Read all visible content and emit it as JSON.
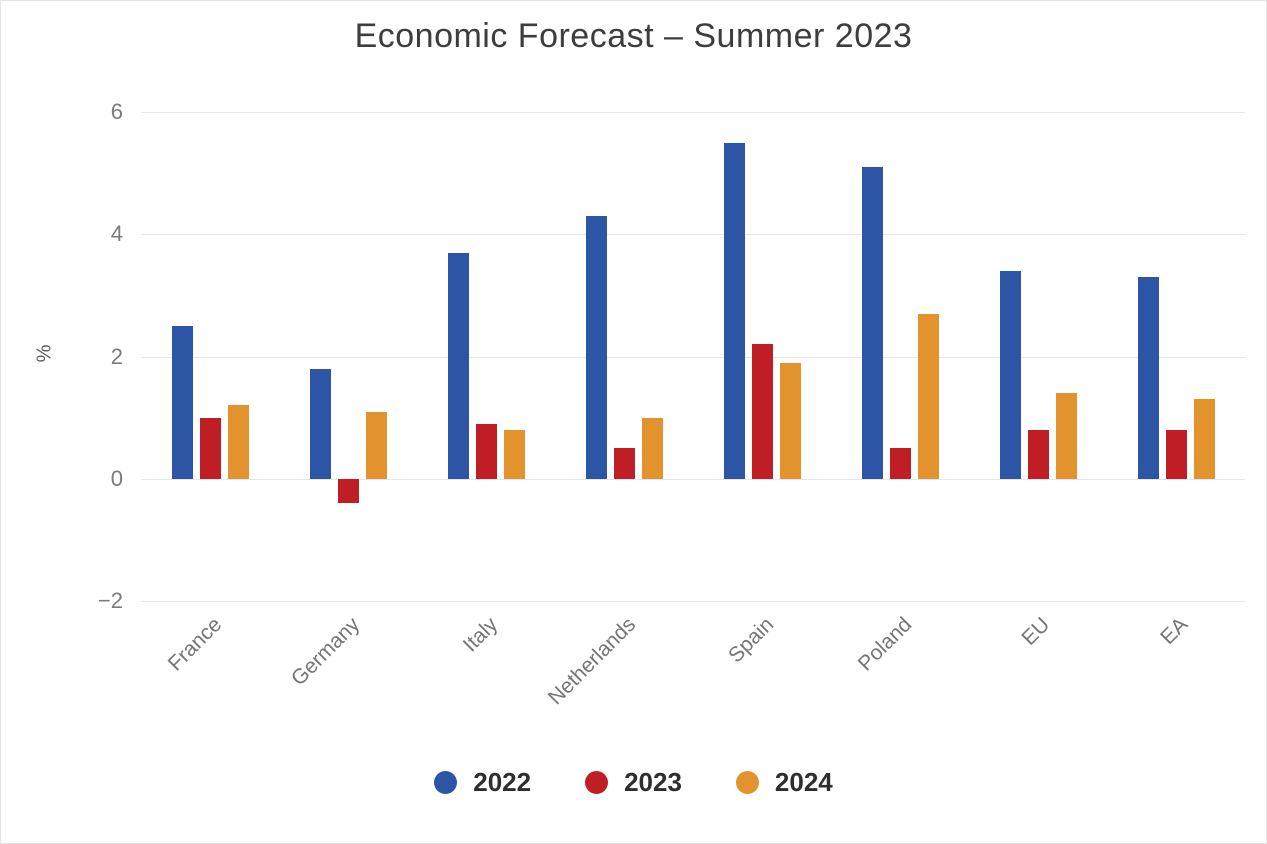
{
  "title": "Economic Forecast – Summer 2023",
  "chart_data": {
    "type": "bar",
    "title": "Economic Forecast – Summer 2023",
    "xlabel": "",
    "ylabel": "%",
    "categories": [
      "France",
      "Germany",
      "Italy",
      "Netherlands",
      "Spain",
      "Poland",
      "EU",
      "EA"
    ],
    "series": [
      {
        "name": "2022",
        "color": "#2d55a5",
        "values": [
          2.5,
          1.8,
          3.7,
          4.3,
          5.5,
          5.1,
          3.4,
          3.3
        ]
      },
      {
        "name": "2023",
        "color": "#bf1e24",
        "values": [
          1.0,
          -0.4,
          0.9,
          0.5,
          2.2,
          0.5,
          0.8,
          0.8
        ]
      },
      {
        "name": "2024",
        "color": "#e2932e",
        "values": [
          1.2,
          1.1,
          0.8,
          1.0,
          1.9,
          2.7,
          1.4,
          1.3
        ]
      }
    ],
    "ylim": [
      -2,
      6
    ],
    "yticks": [
      6,
      4,
      2,
      0,
      -2
    ],
    "grid": true,
    "legend_position": "bottom",
    "colors": {
      "gridline": "#e3e6ea",
      "title_text": "#3d3d3d",
      "axis_text": "#7b7b7b",
      "legend_text": "#2e2e2e"
    }
  }
}
